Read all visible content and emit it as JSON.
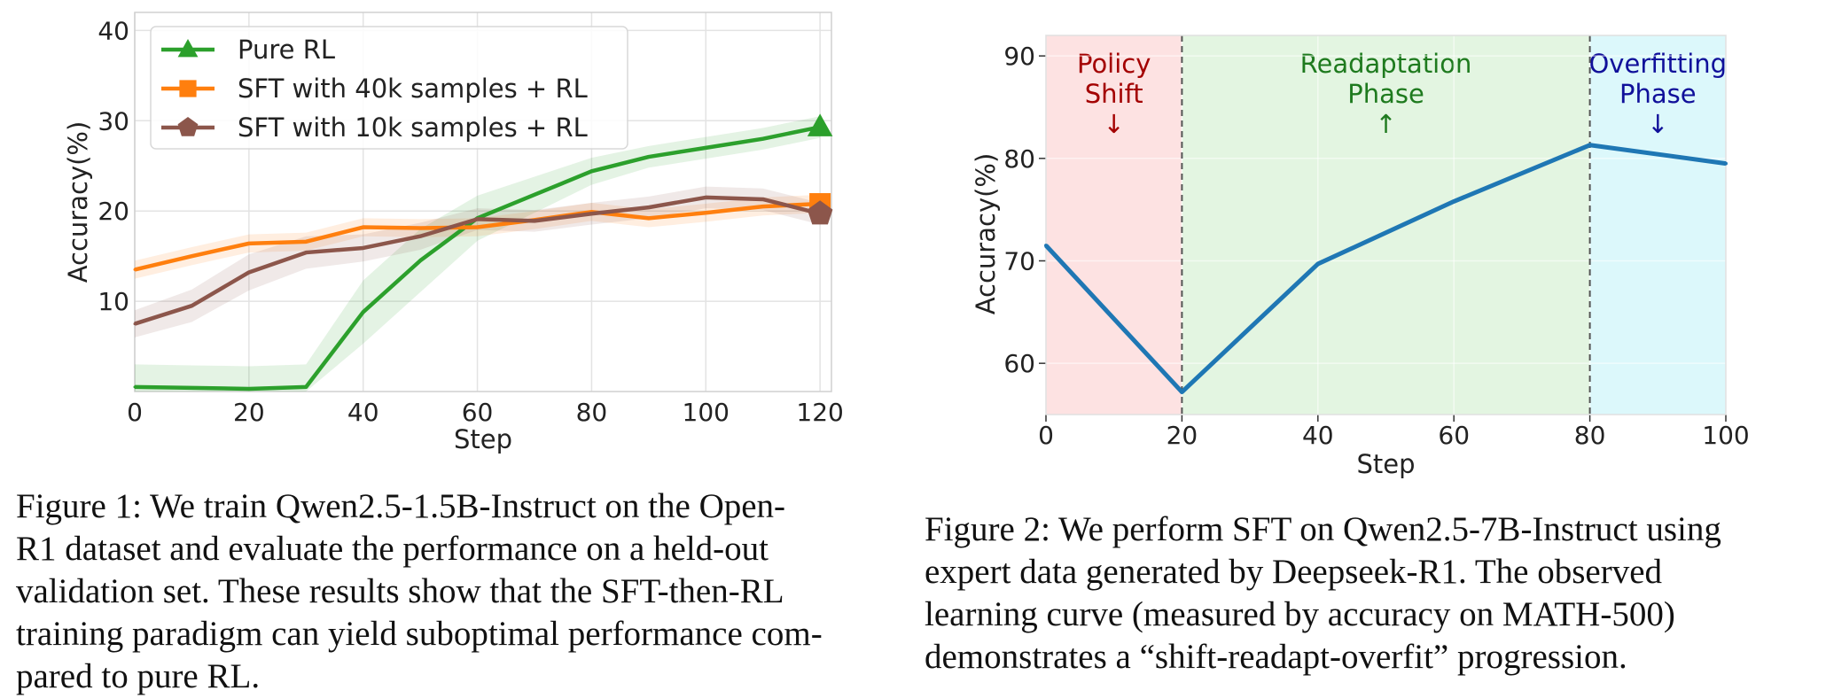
{
  "chart_data": [
    {
      "type": "line",
      "title": "",
      "xlabel": "Step",
      "ylabel": "Accuracy(%)",
      "xlim": [
        0,
        122
      ],
      "ylim": [
        0,
        42
      ],
      "xticks": [
        "0",
        "20",
        "40",
        "60",
        "80",
        "100",
        "120"
      ],
      "yticks": [
        "10",
        "20",
        "30",
        "40"
      ],
      "grid": true,
      "legend": "top-left",
      "series": [
        {
          "name": "Pure RL",
          "color": "#2ca02c",
          "marker": "triangle",
          "x": [
            0,
            10,
            20,
            30,
            40,
            50,
            60,
            70,
            80,
            90,
            100,
            110,
            120
          ],
          "y": [
            0.5,
            0.4,
            0.3,
            0.5,
            8.8,
            14.5,
            19.2,
            21.8,
            24.4,
            26.0,
            27.0,
            28.0,
            29.3
          ],
          "band": [
            2.5,
            2.5,
            2.5,
            2.5,
            3.5,
            3.5,
            2.5,
            2.0,
            1.5,
            1.2,
            1.2,
            1.2,
            1.2
          ]
        },
        {
          "name": "SFT with 40k samples + RL",
          "color": "#ff7f0e",
          "marker": "square",
          "x": [
            0,
            10,
            20,
            30,
            40,
            50,
            60,
            70,
            80,
            90,
            100,
            110,
            120
          ],
          "y": [
            13.5,
            15.0,
            16.4,
            16.6,
            18.2,
            18.1,
            18.2,
            19.0,
            19.9,
            19.2,
            19.8,
            20.5,
            20.8
          ],
          "band": [
            1.0,
            1.0,
            1.0,
            1.0,
            1.0,
            1.0,
            1.0,
            1.0,
            1.0,
            1.0,
            1.0,
            1.0,
            1.0
          ]
        },
        {
          "name": "SFT with 10k samples + RL",
          "color": "#8c564b",
          "marker": "pentagon",
          "x": [
            0,
            10,
            20,
            30,
            40,
            50,
            60,
            70,
            80,
            90,
            100,
            110,
            120
          ],
          "y": [
            7.5,
            9.5,
            13.2,
            15.4,
            15.9,
            17.2,
            19.1,
            18.9,
            19.7,
            20.4,
            21.5,
            21.3,
            19.7
          ],
          "band": [
            1.5,
            1.8,
            2.0,
            1.8,
            1.5,
            1.5,
            1.2,
            1.2,
            1.2,
            1.2,
            1.2,
            1.2,
            1.2
          ]
        }
      ]
    },
    {
      "type": "line",
      "title": "",
      "xlabel": "Step",
      "ylabel": "Accuracy(%)",
      "xlim": [
        0,
        100
      ],
      "ylim": [
        55,
        92
      ],
      "xticks": [
        "0",
        "20",
        "40",
        "60",
        "80",
        "100"
      ],
      "yticks": [
        "60",
        "70",
        "80",
        "90"
      ],
      "grid": true,
      "series": [
        {
          "name": "Accuracy",
          "color": "#1f77b4",
          "x": [
            0,
            20,
            40,
            60,
            80,
            100
          ],
          "y": [
            71.5,
            57.2,
            69.7,
            75.8,
            81.3,
            79.5
          ]
        }
      ],
      "phases": [
        {
          "label_lines": [
            "Policy",
            "Shift",
            "↓"
          ],
          "x_range": [
            0,
            20
          ],
          "color": "#fde2e2",
          "text_color": "#a30000"
        },
        {
          "label_lines": [
            "Readaptation",
            "Phase",
            "↑"
          ],
          "x_range": [
            20,
            80
          ],
          "color": "#e3f5e1",
          "text_color": "#1e7a1e"
        },
        {
          "label_lines": [
            "Overfitting",
            "Phase",
            "↓"
          ],
          "x_range": [
            80,
            100
          ],
          "color": "#dcf8fb",
          "text_color": "#10109a"
        }
      ]
    }
  ],
  "captions": {
    "figure1": [
      "Figure 1: We train Qwen2.5-1.5B-Instruct on the Open-",
      "R1 dataset and evaluate the performance on a held-out",
      "validation set. These results show that the SFT-then-RL",
      "training paradigm can yield suboptimal performance com-",
      "pared to pure RL."
    ],
    "figure2": [
      "Figure 2: We perform SFT on Qwen2.5-7B-Instruct using",
      "expert data generated by Deepseek-R1.  The observed",
      "learning curve (measured by accuracy on MATH-500)",
      "demonstrates a “shift-readapt-overfit” progression."
    ]
  }
}
